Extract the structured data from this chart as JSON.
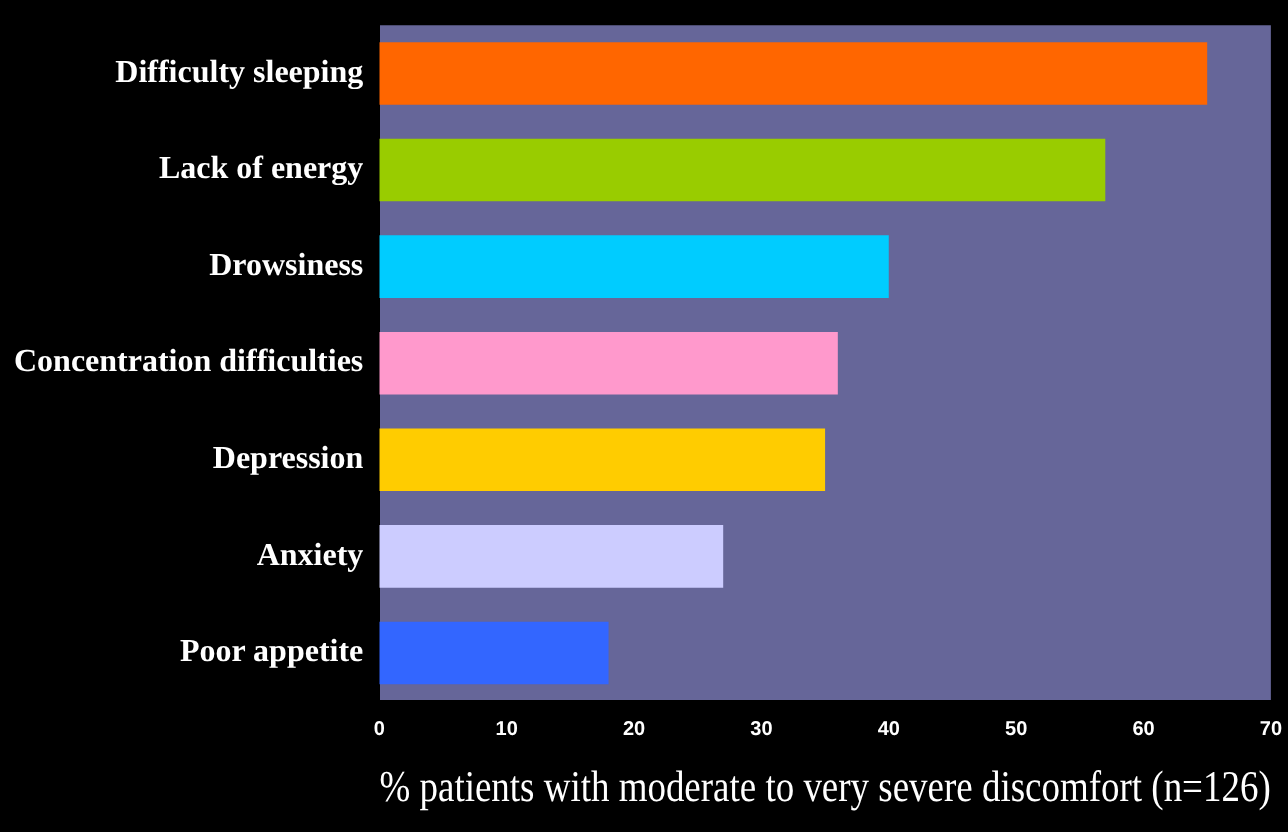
{
  "chart_data": {
    "type": "bar",
    "orientation": "horizontal",
    "xlabel": "% patients with moderate to very severe discomfort (n=126)",
    "categories": [
      "Difficulty sleeping",
      "Lack of energy",
      "Drowsiness",
      "Concentration difficulties",
      "Depression",
      "Anxiety",
      "Poor appetite"
    ],
    "values": [
      65,
      57,
      40,
      36,
      35,
      27,
      18
    ],
    "colors": [
      "#ff6600",
      "#99cc00",
      "#00ccff",
      "#ff99cc",
      "#ffcc00",
      "#ccccff",
      "#3366ff"
    ],
    "xlim": [
      0,
      70
    ],
    "xticks": [
      0,
      10,
      20,
      30,
      40,
      50,
      60,
      70
    ],
    "grid": false,
    "legend": false
  }
}
